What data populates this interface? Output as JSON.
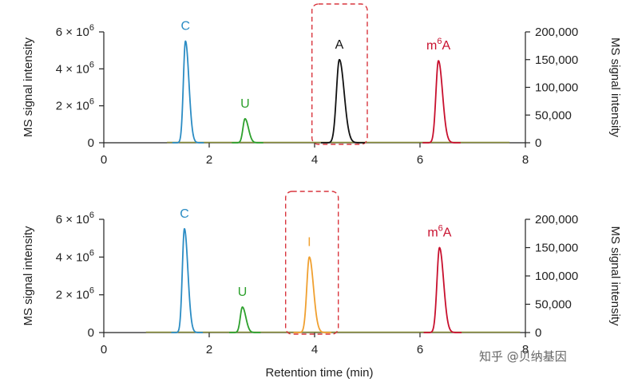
{
  "chart_data": [
    {
      "type": "line",
      "xlim": [
        0,
        8
      ],
      "ylim_left": [
        0,
        6000000
      ],
      "ylim_right": [
        0,
        200000
      ],
      "x_ticks": [
        "0",
        "2",
        "4",
        "6",
        "8"
      ],
      "y_left_ticks": [
        {
          "value": 0,
          "mantissa": "0",
          "exp": ""
        },
        {
          "value": 2000000,
          "mantissa": "2 × 10",
          "exp": "6"
        },
        {
          "value": 4000000,
          "mantissa": "4 × 10",
          "exp": "6"
        },
        {
          "value": 6000000,
          "mantissa": "6 × 10",
          "exp": "6"
        }
      ],
      "y_right_ticks": [
        {
          "value": 0,
          "label": "0"
        },
        {
          "value": 50000,
          "label": "50,000"
        },
        {
          "value": 100000,
          "label": "100,000"
        },
        {
          "value": 150000,
          "label": "150,000"
        },
        {
          "value": 200000,
          "label": "200,000"
        }
      ],
      "ylabel_left": "MS signal intensity",
      "ylabel_right": "MS signal intensity",
      "baseline_range": [
        1.2,
        7.7
      ],
      "highlight_box": [
        3.95,
        5.0
      ],
      "series": [
        {
          "name": "C",
          "base": "C",
          "sup": "",
          "color": "#2b8cc4",
          "axis": "left",
          "center": 1.55,
          "height": 5500000,
          "width": 0.05
        },
        {
          "name": "U",
          "base": "U",
          "sup": "",
          "color": "#2ca02c",
          "axis": "left",
          "center": 2.68,
          "height": 1300000,
          "width": 0.05
        },
        {
          "name": "A",
          "base": "A",
          "sup": "",
          "color": "#111111",
          "axis": "left",
          "center": 4.47,
          "height": 4500000,
          "width": 0.07
        },
        {
          "name": "m6A",
          "base": "m",
          "sup": "6",
          "color": "#c8102e",
          "axis": "right",
          "center": 6.35,
          "height": 148000,
          "width": 0.06
        }
      ]
    },
    {
      "type": "line",
      "xlim": [
        0,
        8
      ],
      "ylim_left": [
        0,
        6000000
      ],
      "ylim_right": [
        0,
        200000
      ],
      "x_ticks": [
        "0",
        "2",
        "4",
        "6",
        "8"
      ],
      "y_left_ticks": [
        {
          "value": 0,
          "mantissa": "0",
          "exp": ""
        },
        {
          "value": 2000000,
          "mantissa": "2 × 10",
          "exp": "6"
        },
        {
          "value": 4000000,
          "mantissa": "4 × 10",
          "exp": "6"
        },
        {
          "value": 6000000,
          "mantissa": "6 × 10",
          "exp": "6"
        }
      ],
      "y_right_ticks": [
        {
          "value": 0,
          "label": "0"
        },
        {
          "value": 50000,
          "label": "50,000"
        },
        {
          "value": 100000,
          "label": "100,000"
        },
        {
          "value": 150000,
          "label": "150,000"
        },
        {
          "value": 200000,
          "label": "200,000"
        }
      ],
      "ylabel_left": "MS signal intensity",
      "ylabel_right": "MS signal intensity",
      "xlabel": "Retention time (min)",
      "baseline_range": [
        0.8,
        7.9
      ],
      "highlight_box": [
        3.45,
        4.45
      ],
      "series": [
        {
          "name": "C",
          "base": "C",
          "sup": "",
          "color": "#2b8cc4",
          "axis": "left",
          "center": 1.53,
          "height": 5500000,
          "width": 0.05
        },
        {
          "name": "U",
          "base": "U",
          "sup": "",
          "color": "#2ca02c",
          "axis": "left",
          "center": 2.63,
          "height": 1350000,
          "width": 0.05
        },
        {
          "name": "I",
          "base": "I",
          "sup": "",
          "color": "#f0a030",
          "axis": "left",
          "center": 3.9,
          "height": 4000000,
          "width": 0.06
        },
        {
          "name": "m6A",
          "base": "m",
          "sup": "6",
          "color": "#c8102e",
          "axis": "right",
          "center": 6.37,
          "height": 150000,
          "width": 0.06
        }
      ]
    }
  ],
  "watermark": "知乎 @贝纳基因"
}
